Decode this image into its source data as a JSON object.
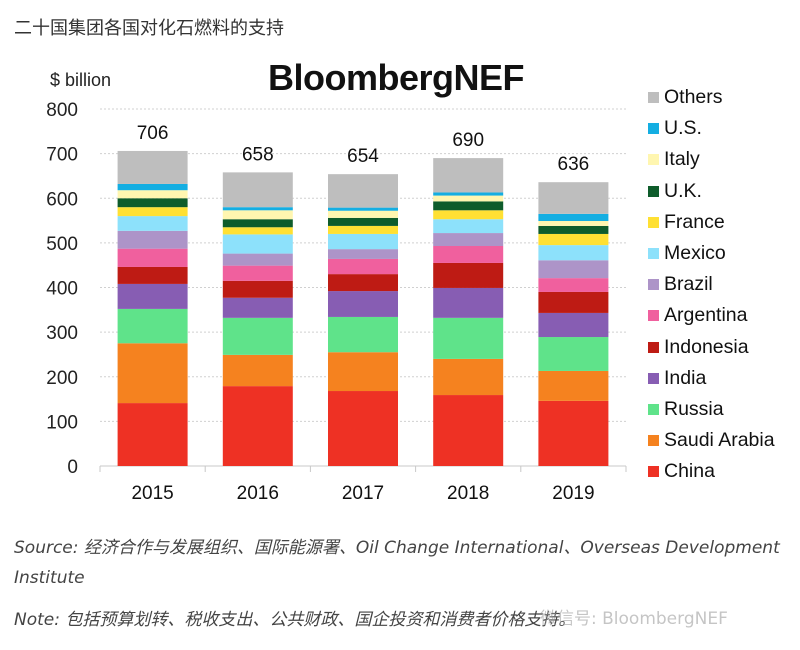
{
  "page": {
    "title": "二十国集团各国对化石燃料的支持",
    "brand": "BloombergNEF",
    "source": "Source: 经济合作与发展组织、国际能源署、Oil Change International、Overseas Development Institute",
    "note": "Note: 包括预算划转、税收支出、公共财政、国企投资和消费者价格支持。",
    "watermark": "微信号: BloombergNEF"
  },
  "chart_data": {
    "type": "bar",
    "stacked": true,
    "title": "二十国集团各国对化石燃料的支持",
    "xlabel": "",
    "ylabel": "$ billion",
    "ylim": [
      0,
      800
    ],
    "yticks": [
      0,
      100,
      200,
      300,
      400,
      500,
      600,
      700,
      800
    ],
    "grid": true,
    "legend_position": "right",
    "categories": [
      "2015",
      "2016",
      "2017",
      "2018",
      "2019"
    ],
    "totals": [
      706,
      658,
      654,
      690,
      636
    ],
    "series": [
      {
        "name": "China",
        "color": "#EE3124",
        "values": [
          141,
          179,
          168,
          159,
          146
        ]
      },
      {
        "name": "Saudi Arabia",
        "color": "#F5821F",
        "values": [
          134,
          70,
          87,
          81,
          67
        ]
      },
      {
        "name": "Russia",
        "color": "#5FE38A",
        "values": [
          77,
          83,
          79,
          92,
          76
        ]
      },
      {
        "name": "India",
        "color": "#875DB3",
        "values": [
          56,
          45,
          58,
          67,
          54
        ]
      },
      {
        "name": "Indonesia",
        "color": "#BE1B14",
        "values": [
          38,
          38,
          38,
          56,
          47
        ]
      },
      {
        "name": "Argentina",
        "color": "#F0609E",
        "values": [
          41,
          34,
          34,
          38,
          31
        ]
      },
      {
        "name": "Brazil",
        "color": "#AD94C8",
        "values": [
          40,
          27,
          22,
          29,
          40
        ]
      },
      {
        "name": "Mexico",
        "color": "#8DE1FB",
        "values": [
          33,
          43,
          34,
          31,
          34
        ]
      },
      {
        "name": "France",
        "color": "#FFE033",
        "values": [
          20,
          16,
          18,
          20,
          25
        ]
      },
      {
        "name": "U.K.",
        "color": "#0E5C2B",
        "values": [
          20,
          18,
          18,
          20,
          18
        ]
      },
      {
        "name": "Italy",
        "color": "#FFF6B0",
        "values": [
          18,
          20,
          16,
          13,
          11
        ]
      },
      {
        "name": "U.S.",
        "color": "#14AEE2",
        "values": [
          14,
          7,
          7,
          7,
          16
        ]
      },
      {
        "name": "Others",
        "color": "#BEBEBE",
        "values": [
          74,
          78,
          75,
          77,
          71
        ]
      }
    ]
  }
}
